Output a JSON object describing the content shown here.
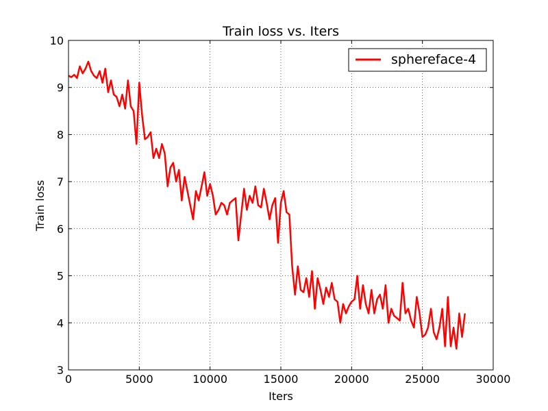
{
  "chart_data": {
    "type": "line",
    "title": "Train loss  vs. Iters",
    "xlabel": "Iters",
    "ylabel": "Train loss",
    "xlim": [
      0,
      30000
    ],
    "ylim": [
      3,
      10
    ],
    "xticks": [
      0,
      5000,
      10000,
      15000,
      20000,
      25000,
      30000
    ],
    "xtick_labels": [
      "0",
      "5000",
      "10000",
      "15000",
      "20000",
      "25000",
      "30000"
    ],
    "yticks": [
      3,
      4,
      5,
      6,
      7,
      8,
      9,
      10
    ],
    "ytick_labels": [
      "3",
      "4",
      "5",
      "6",
      "7",
      "8",
      "9",
      "10"
    ],
    "grid": true,
    "legend_position": "top-right",
    "series": [
      {
        "name": "sphereface-4",
        "color": "#ff0000",
        "x": [
          0,
          200,
          400,
          600,
          800,
          1000,
          1200,
          1400,
          1600,
          1800,
          2000,
          2200,
          2400,
          2600,
          2800,
          3000,
          3200,
          3400,
          3600,
          3800,
          4000,
          4200,
          4400,
          4600,
          4800,
          5000,
          5200,
          5400,
          5600,
          5800,
          6000,
          6200,
          6400,
          6600,
          6800,
          7000,
          7200,
          7400,
          7600,
          7800,
          8000,
          8200,
          8400,
          8600,
          8800,
          9000,
          9200,
          9400,
          9600,
          9800,
          10000,
          10200,
          10400,
          10600,
          10800,
          11000,
          11200,
          11400,
          11600,
          11800,
          12000,
          12200,
          12400,
          12600,
          12800,
          13000,
          13200,
          13400,
          13600,
          13800,
          14000,
          14200,
          14400,
          14600,
          14800,
          15000,
          15200,
          15400,
          15600,
          15800,
          16000,
          16200,
          16400,
          16600,
          16800,
          17000,
          17200,
          17400,
          17600,
          17800,
          18000,
          18200,
          18400,
          18600,
          18800,
          19000,
          19200,
          19400,
          19600,
          19800,
          20000,
          20200,
          20400,
          20600,
          20800,
          21000,
          21200,
          21400,
          21600,
          21800,
          22000,
          22200,
          22400,
          22600,
          22800,
          23000,
          23200,
          23400,
          23600,
          23800,
          24000,
          24200,
          24400,
          24600,
          24800,
          25000,
          25200,
          25400,
          25600,
          25800,
          26000,
          26200,
          26400,
          26600,
          26800,
          27000,
          27200,
          27400,
          27600,
          27800,
          28000
        ],
        "y": [
          9.25,
          9.22,
          9.27,
          9.2,
          9.45,
          9.3,
          9.4,
          9.55,
          9.35,
          9.25,
          9.2,
          9.35,
          9.1,
          9.4,
          8.9,
          9.15,
          8.85,
          8.8,
          8.6,
          8.85,
          8.55,
          9.15,
          8.6,
          8.5,
          7.8,
          9.1,
          8.4,
          7.9,
          7.95,
          8.05,
          7.5,
          7.7,
          7.5,
          7.8,
          7.6,
          6.9,
          7.3,
          7.4,
          7.0,
          7.25,
          6.6,
          7.1,
          6.8,
          6.5,
          6.2,
          6.8,
          6.6,
          6.9,
          7.2,
          6.7,
          6.95,
          6.7,
          6.3,
          6.4,
          6.55,
          6.5,
          6.3,
          6.55,
          6.6,
          6.65,
          5.75,
          6.3,
          6.85,
          6.4,
          6.7,
          6.55,
          6.9,
          6.5,
          6.45,
          6.85,
          6.55,
          6.2,
          6.5,
          6.65,
          5.7,
          6.55,
          6.8,
          6.35,
          6.3,
          5.2,
          4.6,
          5.2,
          4.7,
          4.65,
          4.95,
          4.55,
          5.1,
          4.3,
          4.95,
          4.7,
          4.4,
          4.75,
          4.55,
          4.85,
          4.5,
          4.45,
          4.0,
          4.4,
          4.2,
          4.35,
          4.45,
          4.5,
          5.0,
          4.3,
          4.8,
          4.4,
          4.2,
          4.7,
          4.2,
          4.5,
          4.6,
          4.3,
          4.8,
          4.0,
          4.3,
          4.15,
          4.1,
          4.05,
          4.85,
          4.2,
          4.3,
          4.05,
          3.9,
          4.55,
          4.2,
          3.7,
          3.75,
          3.9,
          4.3,
          3.8,
          3.65,
          3.9,
          4.3,
          3.5,
          4.55,
          3.5,
          3.9,
          3.45,
          4.2,
          3.7,
          4.2
        ]
      }
    ]
  }
}
